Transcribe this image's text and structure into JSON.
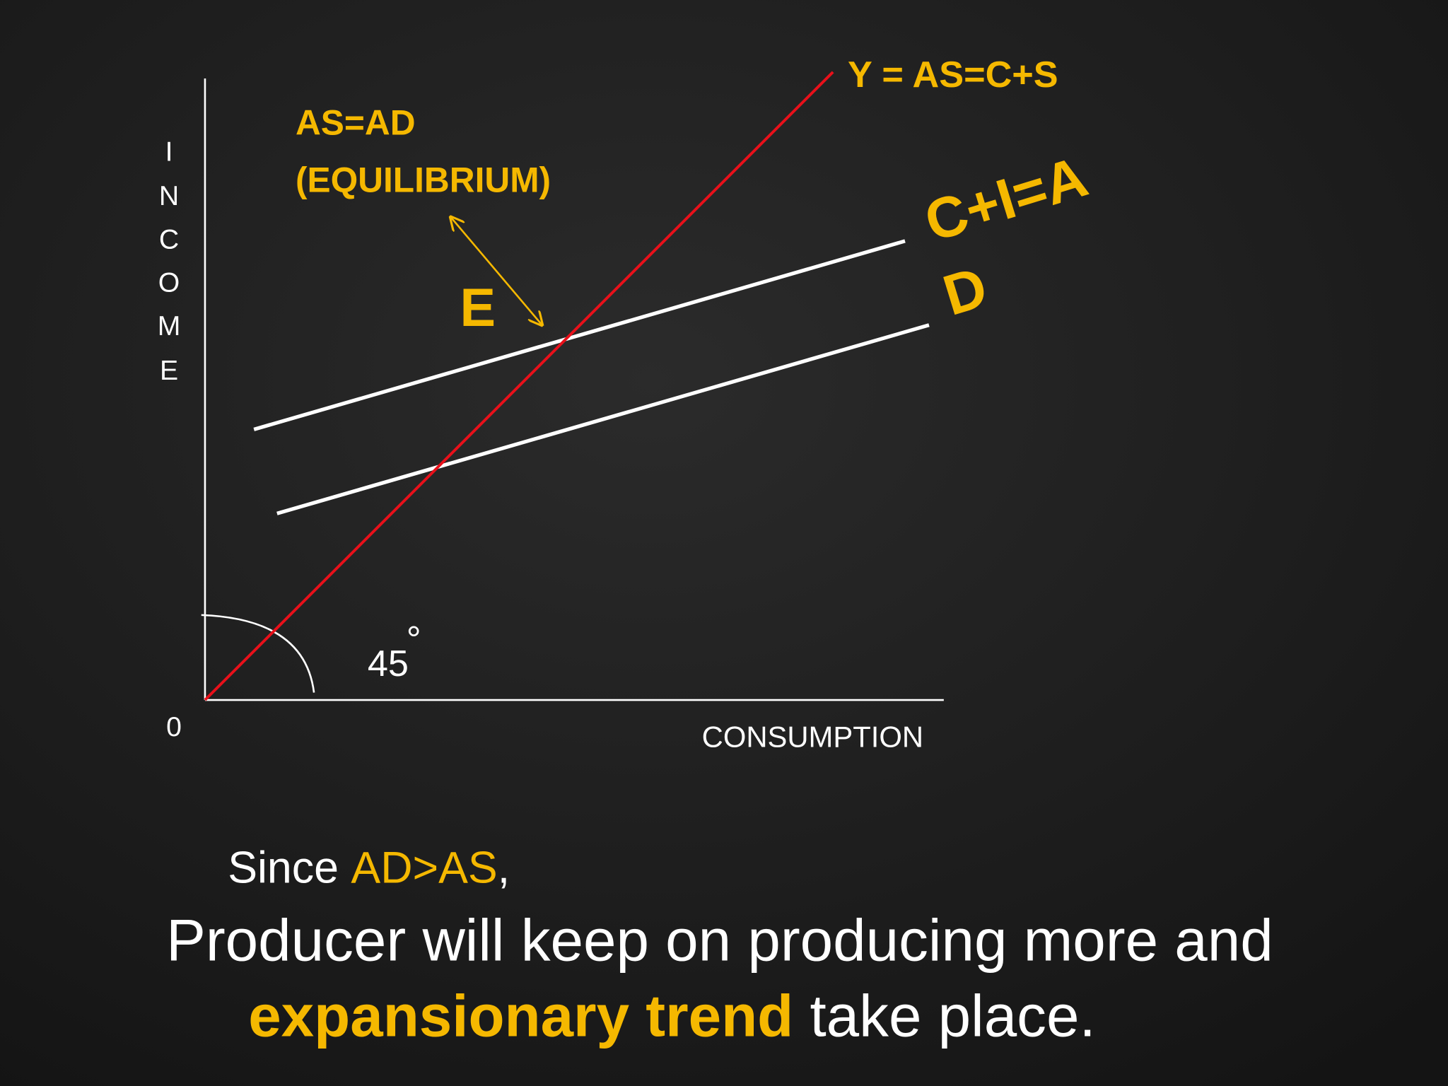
{
  "diagram": {
    "y_axis_label": [
      "I",
      "N",
      "C",
      "O",
      "M",
      "E"
    ],
    "x_axis_label": "CONSUMPTION",
    "origin_label": "0",
    "angle_label": "45",
    "angle_unit": "°",
    "supply_line_label": "Y = AS=C+S",
    "equilibrium_label": [
      "AS=AD",
      "(EQUILIBRIUM)"
    ],
    "equilibrium_point": "E",
    "demand_line_label": [
      "C+I=A",
      "D"
    ]
  },
  "caption": {
    "line1": [
      "Since ",
      "AD>AS",
      ","
    ],
    "line2": "Producer will keep on producing more and",
    "line3": [
      "expansionary trend",
      " take place."
    ]
  }
}
